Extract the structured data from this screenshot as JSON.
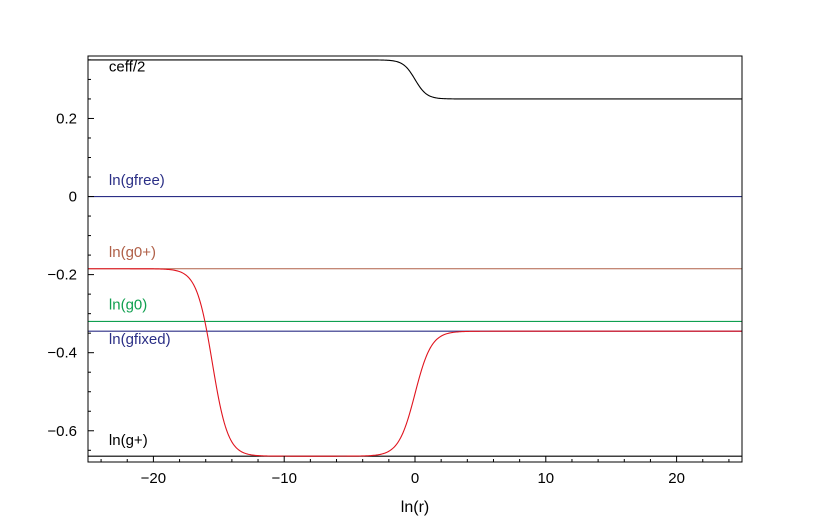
{
  "chart_data": {
    "type": "line",
    "xlabel": "ln(r)",
    "ylabel": "",
    "xlim": [
      -25,
      25
    ],
    "ylim": [
      -0.68,
      0.36
    ],
    "x_ticks": [
      -20,
      -10,
      0,
      10,
      20
    ],
    "x_tick_labels": [
      "−20",
      "−10",
      "0",
      "10",
      "20"
    ],
    "y_ticks": [
      0.2,
      0,
      -0.2,
      -0.4,
      -0.6
    ],
    "y_tick_labels": [
      "0.2",
      "0",
      "−0.2",
      "−0.4",
      "−0.6"
    ],
    "grid": false,
    "series": [
      {
        "name": "ceff/2",
        "color": "#000000",
        "kind": "step_tanh",
        "from": 0.35,
        "to": 0.25,
        "center": 0,
        "width": 0.9,
        "label_x": -23.4,
        "label_y": 0.32
      },
      {
        "name": "ln(gfree)",
        "color": "#2b2f86",
        "kind": "constant",
        "value": 0,
        "label_x": -23.4,
        "label_y": 0.03
      },
      {
        "name": "ln(g0+)",
        "color": "#b06048",
        "kind": "constant",
        "value": -0.185,
        "label_x": -23.4,
        "label_y": -0.155
      },
      {
        "name": "ln(g0)",
        "color": "#10a050",
        "kind": "constant",
        "value": -0.32,
        "label_x": -23.4,
        "label_y": -0.289
      },
      {
        "name": "ln(gfixed)",
        "color": "#2b2f86",
        "kind": "constant",
        "value": -0.345,
        "label_x": -23.4,
        "label_y": -0.378
      },
      {
        "name": "ln(g+)",
        "color": "#000000",
        "kind": "constant",
        "value": -0.665,
        "label_x": -23.4,
        "label_y": -0.637
      },
      {
        "name": "",
        "color": "#e0141e",
        "kind": "dip",
        "base_left": -0.185,
        "min": -0.665,
        "base_right": -0.345,
        "center_left": -15.5,
        "width_left": 1.2,
        "center_right": 0,
        "width_right": 1.25
      }
    ]
  }
}
